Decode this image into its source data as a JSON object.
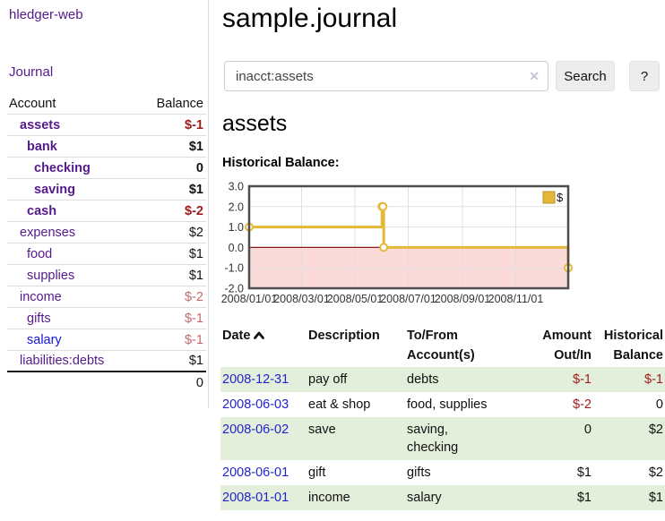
{
  "app": {
    "brand": "hledger-web",
    "nav_journal": "Journal"
  },
  "sidebar": {
    "header": {
      "account": "Account",
      "balance": "Balance"
    },
    "accounts": [
      {
        "name": "assets",
        "depth": 1,
        "balance": "$-1"
      },
      {
        "name": "bank",
        "depth": 2,
        "balance": "$1"
      },
      {
        "name": "checking",
        "depth": 3,
        "balance": "0"
      },
      {
        "name": "saving",
        "depth": 3,
        "balance": "$1"
      },
      {
        "name": "cash",
        "depth": 2,
        "balance": "$-2"
      },
      {
        "name": "expenses",
        "depth": 1,
        "balance": "$2"
      },
      {
        "name": "food",
        "depth": 2,
        "balance": "$1"
      },
      {
        "name": "supplies",
        "depth": 2,
        "balance": "$1"
      },
      {
        "name": "income",
        "depth": 1,
        "balance": "$-2"
      },
      {
        "name": "gifts",
        "depth": 2,
        "balance": "$-1"
      },
      {
        "name": "salary",
        "depth": 2,
        "balance": "$-1"
      },
      {
        "name": "liabilities:debts",
        "depth": 1,
        "balance": "$1"
      }
    ],
    "total": "0"
  },
  "main": {
    "title": "sample.journal",
    "search": {
      "value": "inacct:assets",
      "clear_icon": "✕",
      "button_label": "Search",
      "help_label": "?"
    },
    "account_heading": "assets",
    "chart_label": "Historical Balance:"
  },
  "chart_data": {
    "type": "line",
    "title": "Historical Balance",
    "step": "after",
    "series": [
      {
        "name": "$",
        "color": "#e6b838",
        "points": [
          {
            "date": "2008-01-01",
            "value": 1
          },
          {
            "date": "2008-06-01",
            "value": 2
          },
          {
            "date": "2008-06-02",
            "value": 2
          },
          {
            "date": "2008-06-03",
            "value": 0
          },
          {
            "date": "2008-12-31",
            "value": -1
          }
        ]
      }
    ],
    "x_range": [
      "2008-01-01",
      "2008-12-31"
    ],
    "x_ticks": [
      "2008/01/01",
      "2008/03/01",
      "2008/05/01",
      "2008/07/01",
      "2008/09/01",
      "2008/11/01"
    ],
    "y_ticks": [
      3.0,
      2.0,
      1.0,
      0.0,
      -1.0,
      -2.0
    ],
    "y_tick_labels": [
      "3.0",
      "2.0",
      "1.0",
      "0.0",
      "-1.0",
      "-2.0"
    ],
    "ylim": [
      -2,
      3
    ],
    "grid": true,
    "grid_color": "#e0e0e0",
    "border_color": "#4d4d4d",
    "negative_fill": "#fbdada",
    "zero_line_color": "#8c1b1b",
    "legend": {
      "label": "$",
      "position": "top-right"
    }
  },
  "register": {
    "headers": {
      "date": "Date",
      "description": "Description",
      "tofrom_l1": "To/From",
      "tofrom_l2": "Account(s)",
      "amount_l1": "Amount",
      "amount_l2": "Out/In",
      "hist_l1": "Historical",
      "hist_l2": "Balance"
    },
    "rows": [
      {
        "date": "2008-12-31",
        "description": "pay off",
        "accounts": "debts",
        "amount": "$-1",
        "balance": "$-1"
      },
      {
        "date": "2008-06-03",
        "description": "eat & shop",
        "accounts": "food, supplies",
        "amount": "$-2",
        "balance": "0"
      },
      {
        "date": "2008-06-02",
        "description": "save",
        "accounts": "saving,\nchecking",
        "amount": "0",
        "balance": "$2"
      },
      {
        "date": "2008-06-01",
        "description": "gift",
        "accounts": "gifts",
        "amount": "$1",
        "balance": "$2"
      },
      {
        "date": "2008-01-01",
        "description": "income",
        "accounts": "salary",
        "amount": "$1",
        "balance": "$1"
      }
    ]
  }
}
